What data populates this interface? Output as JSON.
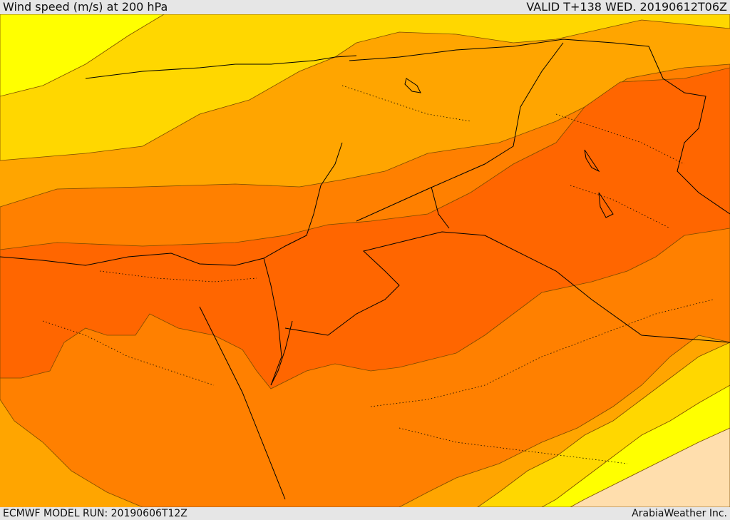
{
  "header": {
    "title": "Wind speed (m/s) at 200 hPa",
    "valid": "VALID T+138 WED. 20190612T06Z"
  },
  "footer": {
    "model_run": "ECMWF MODEL RUN: 20190606T12Z",
    "credit": "ArabiaWeather Inc."
  },
  "map": {
    "field": "wind speed at 200 hPa",
    "colors": {
      "very_weak": "#ffdead",
      "weak": "#ffff00",
      "low": "#ffd700",
      "moderate": "#ffa500",
      "strong": "#ff8000",
      "very_strong": "#ff6600",
      "borders": "#000000"
    }
  }
}
